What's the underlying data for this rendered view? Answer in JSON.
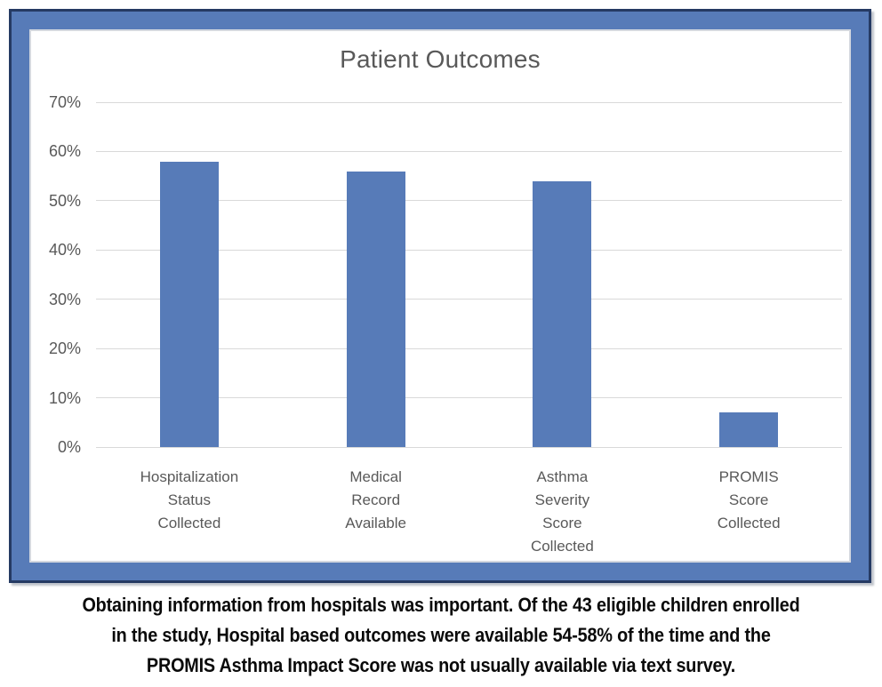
{
  "figure": {
    "caption_lines": [
      "Obtaining information from hospitals was important. Of the 43 eligible children enrolled",
      "in the study, Hospital based outcomes were available 54-58% of the time and the",
      "PROMIS Asthma Impact Score was not usually available via text survey."
    ]
  },
  "chart_data": {
    "type": "bar",
    "title": "Patient Outcomes",
    "categories": [
      "Hospitalization Status Collected",
      "Medical Record Available",
      "Asthma Severity Score Collected",
      "PROMIS Score Collected"
    ],
    "category_label_lines": [
      [
        "Hospitalization",
        "Status",
        "Collected"
      ],
      [
        "Medical",
        "Record",
        "Available"
      ],
      [
        "Asthma",
        "Severity",
        "Score",
        "Collected"
      ],
      [
        "PROMIS",
        "Score",
        "Collected"
      ]
    ],
    "values": [
      58,
      56,
      54,
      7
    ],
    "unit": "percent",
    "xlabel": "",
    "ylabel": "",
    "ylim": [
      0,
      70
    ],
    "ytick_step": 10,
    "ytick_labels": [
      "0%",
      "10%",
      "20%",
      "30%",
      "40%",
      "50%",
      "60%",
      "70%"
    ],
    "grid": true,
    "legend": false,
    "colors": {
      "bar": "#577bb8",
      "frame_band": "#577bb8",
      "frame_border": "#253a63",
      "gridline": "#d9d9d9",
      "axis_text": "#595959",
      "title_text": "#595959",
      "caption_text": "#0a0a0a"
    }
  }
}
